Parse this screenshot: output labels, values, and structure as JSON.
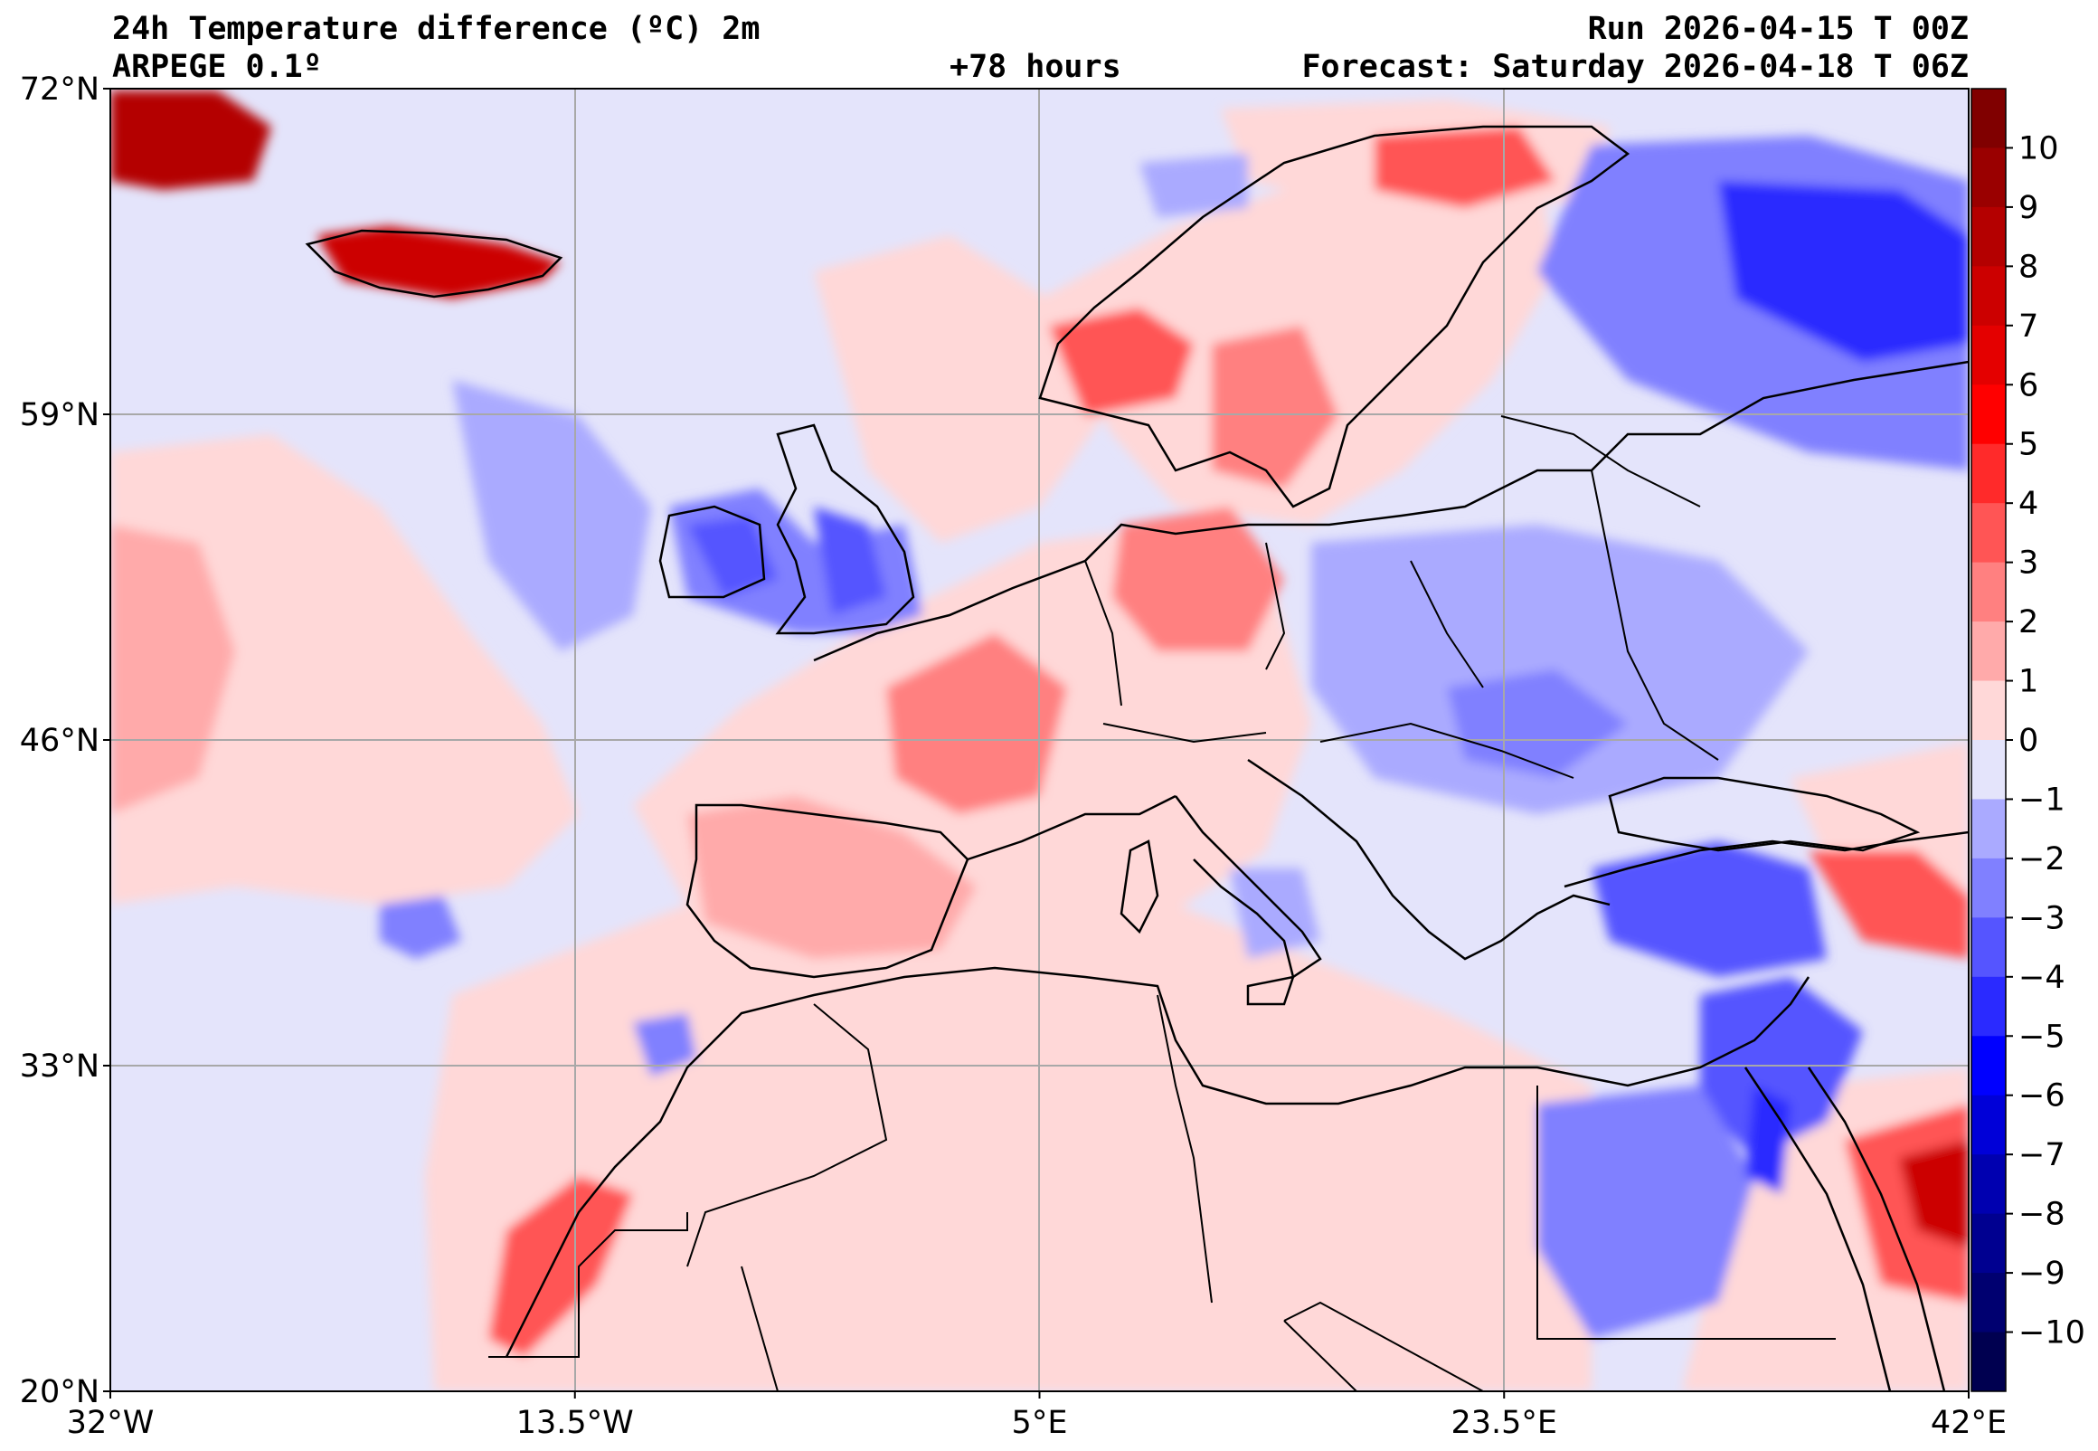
{
  "header": {
    "title": "24h Temperature difference (ºC) 2m",
    "model": "ARPEGE 0.1º",
    "lead_time": "+78 hours",
    "run": "Run 2026-04-15 T 00Z",
    "forecast": "Forecast: Saturday 2026-04-18 T 06Z"
  },
  "map": {
    "lon_range": [
      -32,
      42
    ],
    "lat_range": [
      20,
      72
    ],
    "lat_ticks": [
      {
        "value": 72,
        "label": "72°N"
      },
      {
        "value": 59,
        "label": "59°N"
      },
      {
        "value": 46,
        "label": "46°N"
      },
      {
        "value": 33,
        "label": "33°N"
      },
      {
        "value": 20,
        "label": "20°N"
      }
    ],
    "lon_ticks": [
      {
        "value": -32,
        "label": "32°W"
      },
      {
        "value": -13.5,
        "label": "13.5°W"
      },
      {
        "value": 5,
        "label": "5°E"
      },
      {
        "value": 23.5,
        "label": "23.5°E"
      },
      {
        "value": 42,
        "label": "42°E"
      }
    ],
    "grid": true,
    "background_color": "#e4e4fb"
  },
  "colorbar": {
    "ticks": [
      "10",
      "9",
      "8",
      "7",
      "6",
      "5",
      "4",
      "3",
      "2",
      "1",
      "0",
      "−1",
      "−2",
      "−3",
      "−4",
      "−5",
      "−6",
      "−7",
      "−8",
      "−9",
      "−10"
    ],
    "colors_top_to_bottom": [
      "#800000",
      "#9a0000",
      "#b40000",
      "#cc0000",
      "#e40000",
      "#ff0000",
      "#ff2a2a",
      "#ff5555",
      "#ff8080",
      "#ffaaaa",
      "#ffd8d8",
      "#e4e4fb",
      "#aaaaff",
      "#8080ff",
      "#5555ff",
      "#2a2aff",
      "#0000ff",
      "#0000d8",
      "#0000b0",
      "#000090",
      "#000070",
      "#000050"
    ]
  }
}
